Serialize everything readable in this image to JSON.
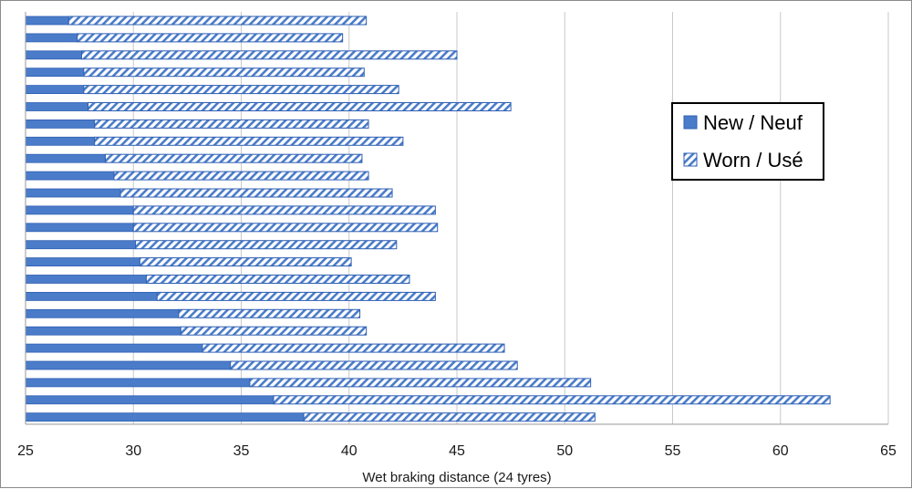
{
  "chart_data": {
    "type": "bar",
    "orientation": "horizontal",
    "title": "",
    "xlabel": "Wet braking distance (24 tyres)",
    "ylabel": "",
    "xlim": [
      25,
      65
    ],
    "xticks": [
      25,
      30,
      35,
      40,
      45,
      50,
      55,
      60,
      65
    ],
    "grid": "vertical",
    "legend_position": "right",
    "bar_color": "#4a7cc9",
    "bar_edge_color": "#2f5fb3",
    "series": [
      {
        "name": "New / Neuf",
        "fill": "solid",
        "values": [
          27.0,
          27.4,
          27.6,
          27.7,
          27.7,
          27.9,
          28.2,
          28.2,
          28.7,
          29.1,
          29.4,
          30.0,
          30.0,
          30.1,
          30.3,
          30.6,
          31.1,
          32.1,
          32.2,
          33.2,
          34.5,
          35.4,
          36.5,
          37.9
        ]
      },
      {
        "name": "Worn / Usé",
        "fill": "hatched",
        "values": [
          40.8,
          39.7,
          45.0,
          40.7,
          42.3,
          47.5,
          40.9,
          42.5,
          40.6,
          40.9,
          42.0,
          44.0,
          44.1,
          42.2,
          40.1,
          42.8,
          44.0,
          40.5,
          40.8,
          47.2,
          47.8,
          51.2,
          62.3,
          51.4
        ]
      }
    ]
  }
}
